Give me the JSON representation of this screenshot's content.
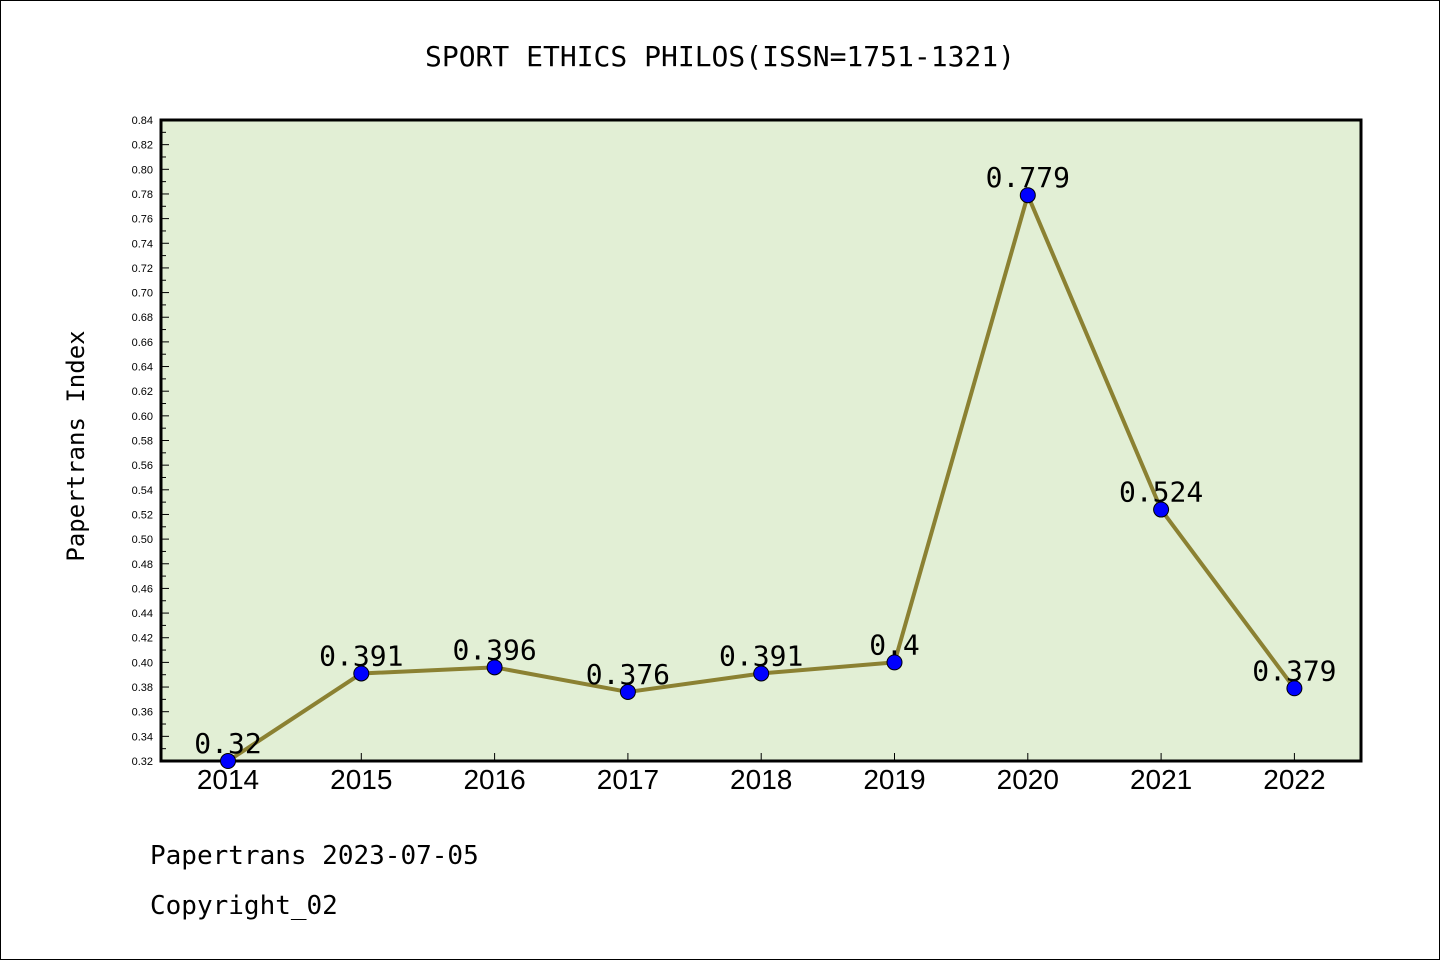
{
  "chart_data": {
    "type": "line",
    "title": "SPORT ETHICS PHILOS(ISSN=1751-1321)",
    "ylabel": "Papertrans Index",
    "xlabel": "",
    "categories": [
      "2014",
      "2015",
      "2016",
      "2017",
      "2018",
      "2019",
      "2020",
      "2021",
      "2022"
    ],
    "values": [
      0.32,
      0.391,
      0.396,
      0.376,
      0.391,
      0.4,
      0.779,
      0.524,
      0.379
    ],
    "value_labels": [
      "0.32",
      "0.391",
      "0.396",
      "0.376",
      "0.391",
      "0.4",
      "0.779",
      "0.524",
      "0.379"
    ],
    "ylim": [
      0.32,
      0.84
    ],
    "yticks": [
      "0.32",
      "0.34",
      "0.36",
      "0.38",
      "0.40",
      "0.42",
      "0.44",
      "0.46",
      "0.48",
      "0.50",
      "0.52",
      "0.54",
      "0.56",
      "0.58",
      "0.60",
      "0.62",
      "0.64",
      "0.66",
      "0.68",
      "0.70",
      "0.72",
      "0.74",
      "0.76",
      "0.78",
      "0.80",
      "0.82",
      "0.84"
    ],
    "grid": false,
    "colors": {
      "plot_background": "#e2efd5",
      "line": "#8b8132",
      "marker": "#0000ff"
    }
  },
  "footer": {
    "line1": "Papertrans 2023-07-05",
    "line2": "Copyright_02"
  }
}
